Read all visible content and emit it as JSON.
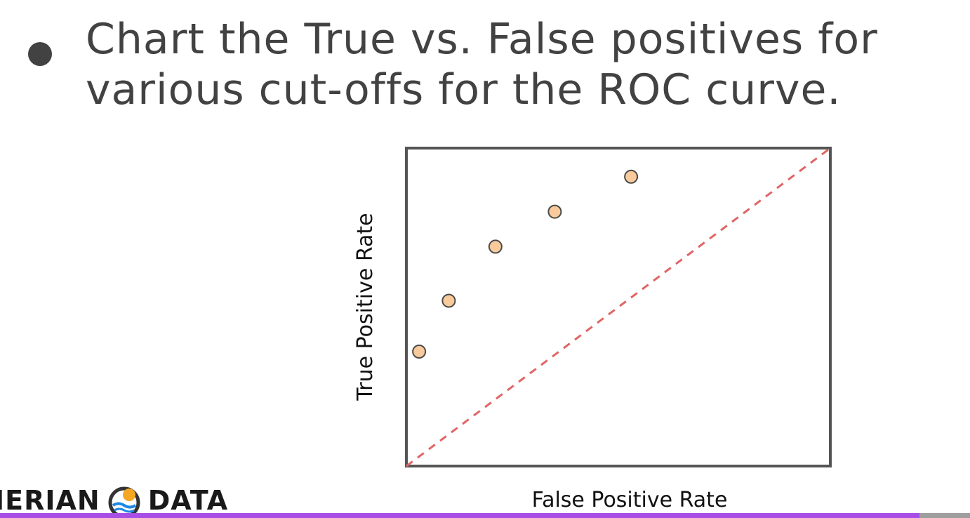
{
  "slide": {
    "bullet_text": "Chart the True vs. False positives for\nvarious cut-offs for the ROC curve."
  },
  "logo": {
    "left_word": "IERIAN",
    "right_word": "DATA",
    "mark_icon": "pierian-data-logo-icon",
    "colors": {
      "sun": "#f5a623",
      "wave": "#1e88e5",
      "ring": "#333333"
    }
  },
  "chart_data": {
    "type": "scatter",
    "title": "",
    "xlabel": "False Positive Rate",
    "ylabel": "True Positive Rate",
    "xlim": [
      0,
      1
    ],
    "ylim": [
      0,
      1
    ],
    "grid": false,
    "points": [
      {
        "x": 0.03,
        "y": 0.36
      },
      {
        "x": 0.1,
        "y": 0.52
      },
      {
        "x": 0.21,
        "y": 0.69
      },
      {
        "x": 0.35,
        "y": 0.8
      },
      {
        "x": 0.53,
        "y": 0.91
      }
    ],
    "reference_line": {
      "from": [
        0,
        0
      ],
      "to": [
        1,
        1
      ],
      "style": "dashed"
    },
    "colors": {
      "point_fill": "#f9cb9c",
      "point_stroke": "#4a4a4a",
      "reference_line": "#e06666",
      "frame": "#555555"
    }
  }
}
